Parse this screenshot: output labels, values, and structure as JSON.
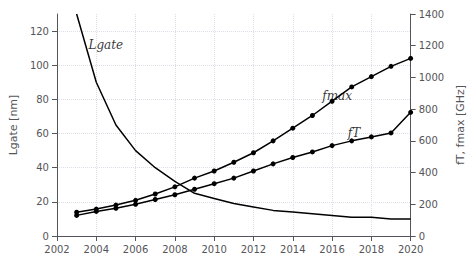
{
  "chart_data": {
    "type": "line",
    "x": [
      2003,
      2004,
      2005,
      2006,
      2007,
      2008,
      2009,
      2010,
      2011,
      2012,
      2013,
      2014,
      2015,
      2016,
      2017,
      2018,
      2019,
      2020
    ],
    "series": [
      {
        "values": [
          130,
          90,
          65,
          50,
          40,
          32,
          25,
          22,
          19,
          17,
          15,
          14,
          13,
          12,
          11,
          11,
          10,
          10
        ],
        "color": "#000000",
        "marker": "none",
        "axis": "y"
      },
      {
        "values": [
          150,
          170,
          195,
          225,
          265,
          310,
          365,
          410,
          465,
          525,
          600,
          680,
          760,
          850,
          940,
          1005,
          1070,
          1120
        ],
        "color": "#000000",
        "marker": "circle",
        "axis": "y2"
      },
      {
        "values": [
          130,
          155,
          175,
          200,
          230,
          260,
          295,
          330,
          365,
          410,
          455,
          495,
          530,
          570,
          600,
          625,
          650,
          780
        ],
        "color": "#000000",
        "marker": "circle",
        "axis": "y2"
      }
    ],
    "xlim": [
      2002,
      2020
    ],
    "xticks": [
      2002,
      2004,
      2006,
      2008,
      2010,
      2012,
      2014,
      2016,
      2018,
      2020
    ],
    "ylim": [
      0,
      130
    ],
    "yticks": [
      0,
      20,
      40,
      60,
      80,
      100,
      120
    ],
    "y2lim": [
      0,
      1400
    ],
    "y2ticks": [
      0,
      200,
      400,
      600,
      800,
      1000,
      1200,
      1400
    ],
    "y_label": "Lgate [nm]",
    "y2_label": "fT, fmax [GHz]",
    "annotations": [
      {
        "text": "Lgate",
        "x": 2003.6,
        "y": 112,
        "axis": "y",
        "color": "#000000"
      },
      {
        "text": "fmax",
        "x": 2015.5,
        "y": 880,
        "axis": "y2",
        "color": "#000000"
      },
      {
        "text": "fT",
        "x": 2016.8,
        "y": 650,
        "axis": "y2",
        "color": "#000000"
      }
    ],
    "grid": true
  }
}
